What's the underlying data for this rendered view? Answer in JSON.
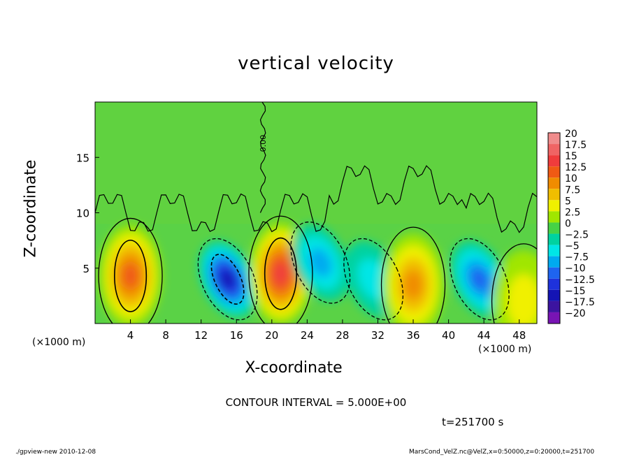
{
  "title": "vertical velocity",
  "xlabel": "X-coordinate",
  "ylabel": "Z-coordinate",
  "x_unit_left": "(×1000 m)",
  "x_unit_right": "(×1000 m)",
  "contour_interval": "CONTOUR INTERVAL = 5.000E+00",
  "time_label": "t=251700 s",
  "footer_left": "./gpview-new  2010-12-08",
  "footer_right": "MarsCond_VelZ.nc@VelZ,x=0:50000,z=0:20000,t=251700",
  "contour_label": "0.00",
  "chart_data": {
    "type": "heatmap",
    "title": "vertical velocity",
    "xlabel": "X-coordinate",
    "ylabel": "Z-coordinate",
    "xlim": [
      0,
      50
    ],
    "ylim": [
      0,
      20
    ],
    "x_ticks": [
      4,
      8,
      12,
      16,
      20,
      24,
      28,
      32,
      36,
      40,
      44,
      48
    ],
    "y_ticks": [
      5,
      10,
      15
    ],
    "colorbar": {
      "levels": [
        "20",
        "17.5",
        "15",
        "12.5",
        "10",
        "7.5",
        "5",
        "2.5",
        "0",
        "−2.5",
        "−5",
        "−7.5",
        "−10",
        "−12.5",
        "−15",
        "−17.5",
        "−20"
      ],
      "colors": [
        "#f08c8c",
        "#f06464",
        "#f03c3c",
        "#f05a14",
        "#f08c00",
        "#f0be00",
        "#f0f000",
        "#a0e600",
        "#46d246",
        "#00d2a0",
        "#00e6e6",
        "#00aaf0",
        "#1e64f0",
        "#1e32dc",
        "#1414b4",
        "#3c14a0",
        "#7814b4"
      ]
    },
    "features": [
      {
        "kind": "updraft",
        "x": 4,
        "z": 4.3,
        "peak": 12
      },
      {
        "kind": "downdraft",
        "x": 15,
        "z": 4.0,
        "peak": -13
      },
      {
        "kind": "updraft",
        "x": 21,
        "z": 4.5,
        "peak": 13
      },
      {
        "kind": "downdraft",
        "x": 25.5,
        "z": 5.5,
        "peak": -6
      },
      {
        "kind": "downdraft",
        "x": 31.5,
        "z": 4.0,
        "peak": -5
      },
      {
        "kind": "updraft",
        "x": 36,
        "z": 3.5,
        "peak": 9
      },
      {
        "kind": "downdraft",
        "x": 43.5,
        "z": 4.0,
        "peak": -9
      },
      {
        "kind": "updraft",
        "x": 48.5,
        "z": 2.0,
        "peak": 3
      }
    ]
  }
}
